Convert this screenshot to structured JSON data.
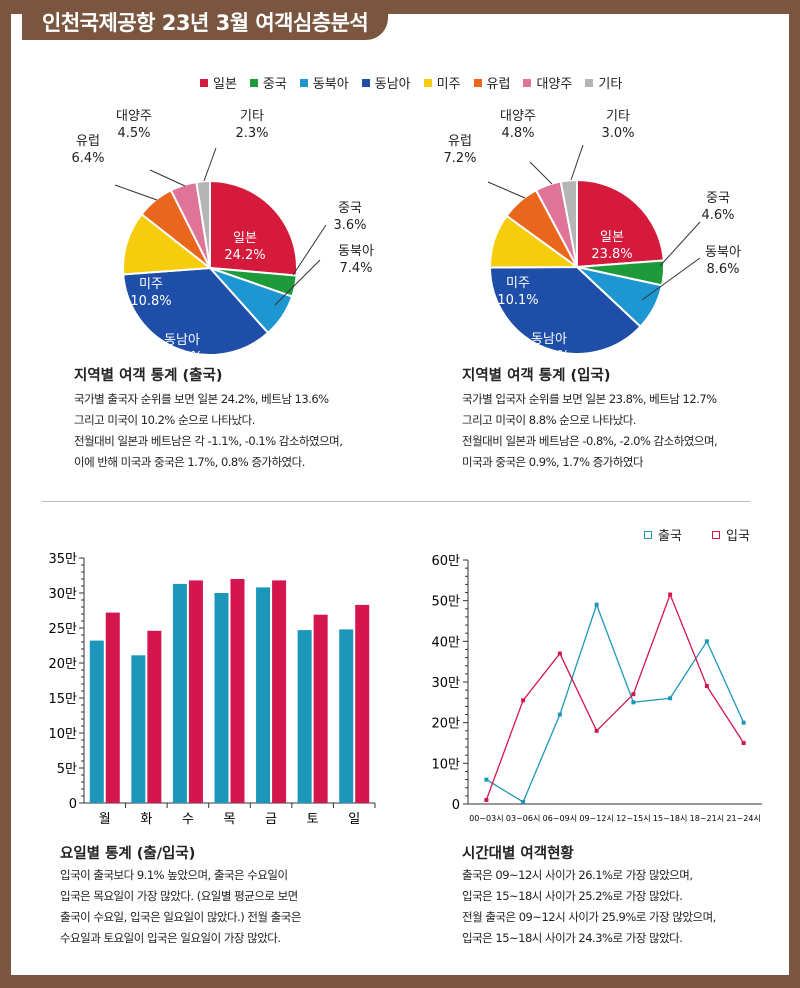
{
  "title": "인천국제공항 23년 3월 여객심층분석",
  "colors": {
    "일본": "#d61a3c",
    "중국": "#1f9a3a",
    "동북아": "#1e96d2",
    "동남아": "#1e4ea8",
    "미주": "#f5cd0d",
    "유럽": "#e9661c",
    "대양주": "#e07498",
    "기타": "#b5b5b5",
    "출국": "#1c97ba",
    "입국": "#d5154d"
  },
  "legend": [
    "일본",
    "중국",
    "동북아",
    "동남아",
    "미주",
    "유럽",
    "대양주",
    "기타"
  ],
  "sections": {
    "out_title": "지역별 여객 통계 (출국)",
    "out_desc": [
      "국가별 출국자 순위를 보면 일본 24.2%, 베트남 13.6%",
      "그리고 미국이 10.2% 순으로 나타났다.",
      "전월대비 일본과 베트남은 각 -1.1%, -0.1% 감소하였으며,",
      "이에 반해 미국과 중국은 1.7%, 0.8% 증가하였다."
    ],
    "in_title": "지역별 여객 통계 (입국)",
    "in_desc": [
      "국가별 입국자 순위를 보면 일본 23.8%, 베트남 12.7%",
      "그리고 미국이 8.8% 순으로 나타났다.",
      "전월대비 일본과 베트남은 -0.8%, -2.0% 감소하였으며,",
      "미국과 중국은 0.9%, 1.7% 증가하였다"
    ],
    "day_title": "요일별 통계 (출/입국)",
    "day_desc": [
      "입국이 출국보다 9.1% 높았으며, 출국은 수요일이",
      "입국은 목요일이 가장 많았다. (요일별 평균으로 보면",
      "출국이 수요일, 입국은 일요일이 많았다.) 전월 출국은",
      "수요일과 토요일이 입국은 일요일이 가장 많았다."
    ],
    "time_title": "시간대별 여객현황",
    "time_desc": [
      "출국은 09~12시 사이가 26.1%로 가장 많았으며,",
      "입국은 15~18시 사이가 25.2%로 가장 많았다.",
      "전월 출국은 09~12시 사이가 25.9%로 가장 많았으며,",
      "입국은 15~18시 사이가 24.3%로 가장 많았다."
    ]
  },
  "chart_data": [
    {
      "type": "pie",
      "slices": [
        {
          "label": "일본",
          "value": 24.2
        },
        {
          "label": "중국",
          "value": 3.6
        },
        {
          "label": "동북아",
          "value": 7.4
        },
        {
          "label": "동남아",
          "value": 32.5
        },
        {
          "label": "미주",
          "value": 10.8
        },
        {
          "label": "유럽",
          "value": 6.4
        },
        {
          "label": "대양주",
          "value": 4.5
        },
        {
          "label": "기타",
          "value": 2.3
        }
      ]
    },
    {
      "type": "pie",
      "slices": [
        {
          "label": "일본",
          "value": 23.8
        },
        {
          "label": "중국",
          "value": 4.6
        },
        {
          "label": "동북아",
          "value": 8.6
        },
        {
          "label": "동남아",
          "value": 37.9
        },
        {
          "label": "미주",
          "value": 10.1
        },
        {
          "label": "유럽",
          "value": 7.2
        },
        {
          "label": "대양주",
          "value": 4.8
        },
        {
          "label": "기타",
          "value": 3.0
        }
      ]
    },
    {
      "type": "bar",
      "categories": [
        "월",
        "화",
        "수",
        "목",
        "금",
        "토",
        "일"
      ],
      "series": [
        {
          "name": "출국",
          "values": [
            23.2,
            21.1,
            31.3,
            30.0,
            30.8,
            24.7,
            24.8
          ]
        },
        {
          "name": "입국",
          "values": [
            27.2,
            24.6,
            31.8,
            32.0,
            31.8,
            26.9,
            28.3
          ]
        }
      ],
      "ylim": [
        0,
        35
      ],
      "yticks": [
        "0",
        "5만",
        "10만",
        "15만",
        "20만",
        "25만",
        "30만",
        "35만"
      ]
    },
    {
      "type": "line",
      "categories": [
        "00~03시",
        "03~06시",
        "06~09시",
        "09~12시",
        "12~15시",
        "15~18시",
        "18~21시",
        "21~24시"
      ],
      "series": [
        {
          "name": "출국",
          "values": [
            6,
            0.5,
            22,
            49,
            25,
            26,
            40,
            20
          ]
        },
        {
          "name": "입국",
          "values": [
            1,
            25.5,
            37,
            18,
            27,
            51.5,
            29,
            15
          ]
        }
      ],
      "ylim": [
        0,
        60
      ],
      "yticks": [
        "0",
        "10만",
        "20만",
        "30만",
        "40만",
        "50만",
        "60만"
      ]
    }
  ]
}
